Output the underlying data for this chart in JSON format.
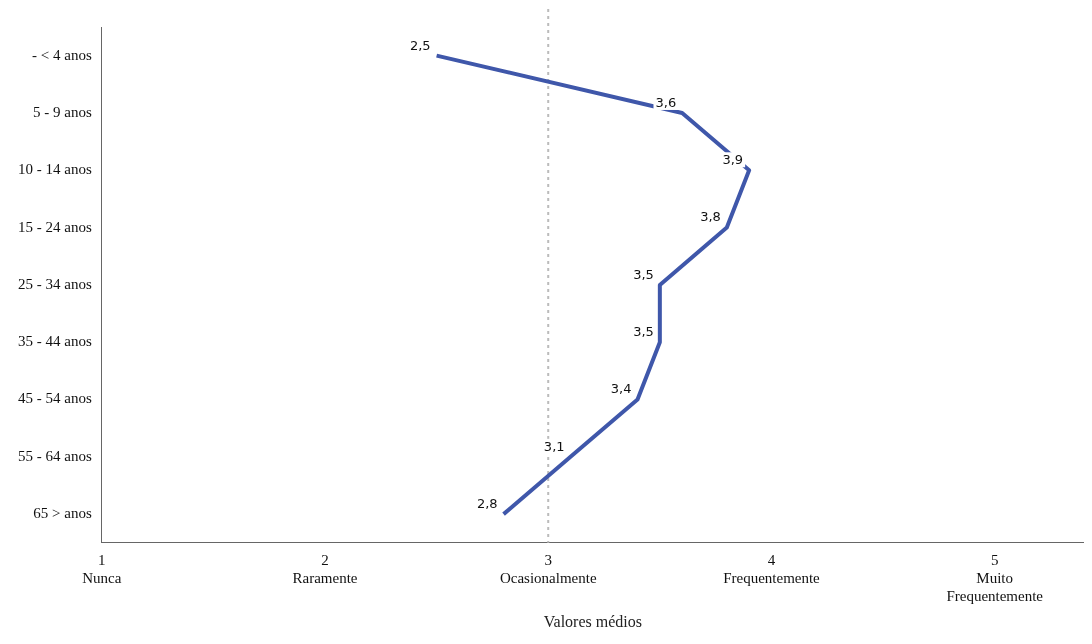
{
  "chart_data": {
    "type": "line",
    "orientation": "horizontal",
    "xlabel": "Valores médios",
    "categories": [
      "- < 4 anos",
      "5 - 9 anos",
      "10 - 14 anos",
      "15 - 24 anos",
      "25 - 34 anos",
      "35 - 44 anos",
      "45 - 54 anos",
      "55 - 64 anos",
      "65 > anos"
    ],
    "series": [
      {
        "color": "#3f57aa",
        "values": [
          2.5,
          3.6,
          3.9,
          3.8,
          3.5,
          3.5,
          3.4,
          3.1,
          2.8
        ],
        "value_labels": [
          "2,5",
          "3,6",
          "3,9",
          "3,8",
          "3,5",
          "3,5",
          "3,4",
          "3,1",
          "2,8"
        ]
      }
    ],
    "xlim": [
      1,
      5.4
    ],
    "xticks": [
      {
        "value": 1,
        "label": "1\nNunca"
      },
      {
        "value": 2,
        "label": "2\nRaramente"
      },
      {
        "value": 3,
        "label": "3\nOcasionalmente"
      },
      {
        "value": 4,
        "label": "4\nFrequentemente"
      },
      {
        "value": 5,
        "label": "5\nMuito\nFrequentemente"
      }
    ],
    "ref_lines": [
      {
        "axis": "x",
        "value": 3,
        "color": "#bbbbbb",
        "line_style": "dotted"
      }
    ],
    "grid": false,
    "legend": false,
    "line_style": "solid"
  }
}
